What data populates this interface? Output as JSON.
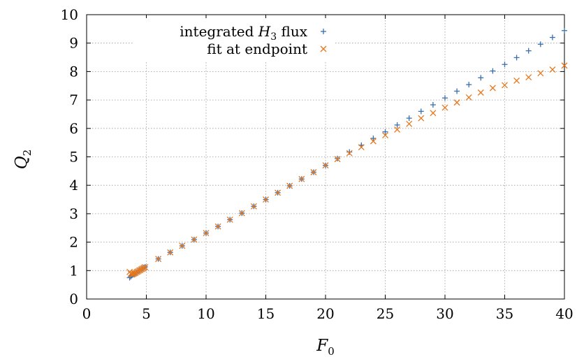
{
  "chart_data": {
    "type": "scatter",
    "title": "",
    "xlabel": {
      "main": "F",
      "sub": "0"
    },
    "ylabel": {
      "main": "Q",
      "sub": "2"
    },
    "xlim": [
      0,
      40
    ],
    "ylim": [
      0,
      10
    ],
    "xticks": [
      0,
      5,
      10,
      15,
      20,
      25,
      30,
      35,
      40
    ],
    "yticks": [
      0,
      1,
      2,
      3,
      4,
      5,
      6,
      7,
      8,
      9,
      10
    ],
    "grid": true,
    "legend_position": "top-right",
    "series": [
      {
        "name": "integrated H3 flux",
        "legend": {
          "pre": "integrated ",
          "var": "H",
          "sub": "3",
          "post": " flux"
        },
        "marker": "plus",
        "color": "#3a6fb0",
        "points": [
          [
            3.6,
            0.75
          ],
          [
            3.7,
            0.79
          ],
          [
            3.8,
            0.83
          ],
          [
            3.9,
            0.86
          ],
          [
            4.0,
            0.89
          ],
          [
            4.1,
            0.92
          ],
          [
            4.2,
            0.94
          ],
          [
            4.3,
            0.97
          ],
          [
            4.4,
            1.0
          ],
          [
            4.5,
            1.02
          ],
          [
            4.6,
            1.05
          ],
          [
            4.7,
            1.07
          ],
          [
            4.8,
            1.1
          ],
          [
            4.9,
            1.13
          ],
          [
            6,
            1.41
          ],
          [
            7,
            1.64
          ],
          [
            8,
            1.87
          ],
          [
            9,
            2.09
          ],
          [
            10,
            2.32
          ],
          [
            11,
            2.55
          ],
          [
            12,
            2.79
          ],
          [
            13,
            3.02
          ],
          [
            14,
            3.26
          ],
          [
            15,
            3.5
          ],
          [
            16,
            3.74
          ],
          [
            17,
            3.98
          ],
          [
            18,
            4.22
          ],
          [
            19,
            4.46
          ],
          [
            20,
            4.7
          ],
          [
            21,
            4.94
          ],
          [
            22,
            5.17
          ],
          [
            23,
            5.41
          ],
          [
            24,
            5.65
          ],
          [
            25,
            5.88
          ],
          [
            26,
            6.12
          ],
          [
            27,
            6.36
          ],
          [
            28,
            6.6
          ],
          [
            29,
            6.83
          ],
          [
            30,
            7.07
          ],
          [
            31,
            7.31
          ],
          [
            32,
            7.54
          ],
          [
            33,
            7.78
          ],
          [
            34,
            8.02
          ],
          [
            35,
            8.25
          ],
          [
            36,
            8.49
          ],
          [
            37,
            8.73
          ],
          [
            38,
            8.96
          ],
          [
            39,
            9.2
          ],
          [
            40,
            9.44
          ]
        ]
      },
      {
        "name": "fit at endpoint",
        "legend": {
          "pre": "fit at endpoint",
          "var": "",
          "sub": "",
          "post": ""
        },
        "marker": "cross",
        "color": "#e8761a",
        "points": [
          [
            3.6,
            0.95
          ],
          [
            3.7,
            0.89
          ],
          [
            3.8,
            0.86
          ],
          [
            3.9,
            0.88
          ],
          [
            4.0,
            0.9
          ],
          [
            4.1,
            0.92
          ],
          [
            4.2,
            0.95
          ],
          [
            4.3,
            0.97
          ],
          [
            4.4,
            1.0
          ],
          [
            4.5,
            1.02
          ],
          [
            4.6,
            1.05
          ],
          [
            4.7,
            1.07
          ],
          [
            4.8,
            1.1
          ],
          [
            4.9,
            1.12
          ],
          [
            6,
            1.41
          ],
          [
            7,
            1.64
          ],
          [
            8,
            1.87
          ],
          [
            9,
            2.09
          ],
          [
            10,
            2.32
          ],
          [
            11,
            2.55
          ],
          [
            12,
            2.79
          ],
          [
            13,
            3.02
          ],
          [
            14,
            3.26
          ],
          [
            15,
            3.5
          ],
          [
            16,
            3.74
          ],
          [
            17,
            3.98
          ],
          [
            18,
            4.22
          ],
          [
            19,
            4.46
          ],
          [
            20,
            4.7
          ],
          [
            21,
            4.92
          ],
          [
            22,
            5.13
          ],
          [
            23,
            5.34
          ],
          [
            24,
            5.55
          ],
          [
            25,
            5.76
          ],
          [
            26,
            5.96
          ],
          [
            27,
            6.16
          ],
          [
            28,
            6.36
          ],
          [
            29,
            6.54
          ],
          [
            30,
            6.73
          ],
          [
            31,
            6.91
          ],
          [
            32,
            7.09
          ],
          [
            33,
            7.26
          ],
          [
            34,
            7.42
          ],
          [
            35,
            7.52
          ],
          [
            36,
            7.68
          ],
          [
            37,
            7.8
          ],
          [
            38,
            7.94
          ],
          [
            39,
            8.07
          ],
          [
            40,
            8.21
          ]
        ]
      }
    ]
  }
}
